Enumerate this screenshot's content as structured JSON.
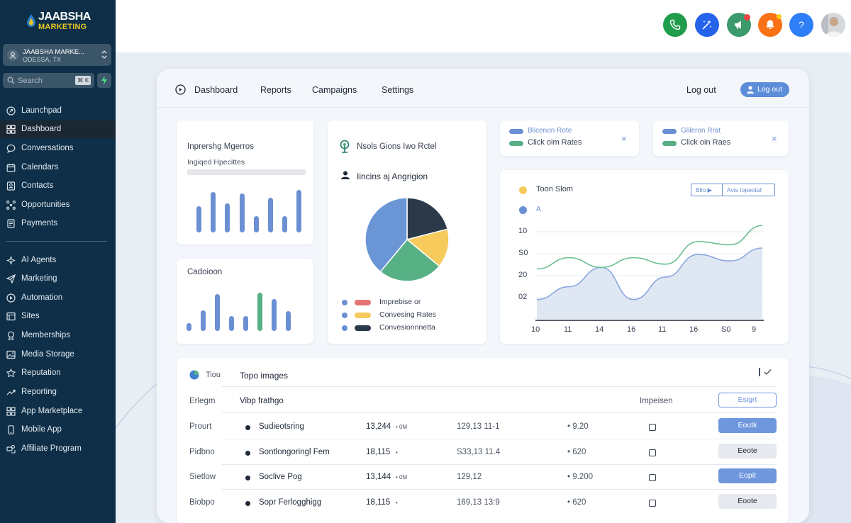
{
  "brand": {
    "name": "JAABSHA",
    "sub": "MARKETING",
    "accent": "#e7c421"
  },
  "account": {
    "name": "JAABSHA MARKE...",
    "location": "ODESSA, TX"
  },
  "search": {
    "placeholder": "Search",
    "shortcut": "⌘ K"
  },
  "sidebar": {
    "items": [
      {
        "label": "Launchpad",
        "icon": "rocket-icon"
      },
      {
        "label": "Dashboard",
        "icon": "grid-icon",
        "active": true
      },
      {
        "label": "Conversations",
        "icon": "chat-icon"
      },
      {
        "label": "Calendars",
        "icon": "calendar-icon"
      },
      {
        "label": "Contacts",
        "icon": "contacts-icon"
      },
      {
        "label": "Opportunities",
        "icon": "opportunities-icon"
      },
      {
        "label": "Payments",
        "icon": "payments-icon"
      },
      {
        "label": "AI Agents",
        "icon": "sparkle-icon"
      },
      {
        "label": "Marketing",
        "icon": "send-icon"
      },
      {
        "label": "Automation",
        "icon": "automation-icon"
      },
      {
        "label": "Sites",
        "icon": "sites-icon"
      },
      {
        "label": "Memberships",
        "icon": "memberships-icon"
      },
      {
        "label": "Media Storage",
        "icon": "image-icon"
      },
      {
        "label": "Reputation",
        "icon": "star-icon"
      },
      {
        "label": "Reporting",
        "icon": "trend-icon"
      },
      {
        "label": "App Marketplace",
        "icon": "apps-icon"
      },
      {
        "label": "Mobile App",
        "icon": "mobile-icon"
      },
      {
        "label": "Affiliate Program",
        "icon": "affiliate-icon"
      }
    ]
  },
  "topbar": {
    "buttons": [
      {
        "name": "phone-icon",
        "color": "#1f9d4d"
      },
      {
        "name": "magic-icon",
        "color": "#2563eb"
      },
      {
        "name": "megaphone-icon",
        "color": "#3b9a6b"
      },
      {
        "name": "bell-icon",
        "color": "#f97316"
      },
      {
        "name": "help-icon",
        "color": "#2d7ef7"
      }
    ]
  },
  "main_nav": {
    "items": [
      "Dashboard",
      "Reports",
      "Campaigns",
      "Settings"
    ],
    "logout_text": "Log out",
    "logout_button": "Log out"
  },
  "card1": {
    "title": "Inprershg Mgerros",
    "subtitle": "Ingiqed Hpecittes",
    "bars": [
      0.62,
      0.95,
      0.68,
      0.92,
      0.38,
      0.82,
      0.38,
      1.0
    ]
  },
  "card2": {
    "title": "Cadoioon",
    "bars": [
      0.2,
      0.54,
      0.96,
      0.38,
      0.38,
      1.0,
      0.84,
      0.52
    ],
    "highlight_index": 5
  },
  "card3": {
    "title": "Nsols Gions Iwo Rctel",
    "subtitle": "Iincins aj Angrigion",
    "pie": [
      {
        "value": 39,
        "color": "#6b96d6"
      },
      {
        "value": 25,
        "color": "#58b085"
      },
      {
        "value": 15,
        "color": "#f7ca5c"
      },
      {
        "value": 21,
        "color": "#2c3949"
      }
    ],
    "legend": [
      {
        "label": "Imprebise or",
        "color": "#e57373"
      },
      {
        "label": "Convesing Rates",
        "color": "#f7ca5c"
      },
      {
        "label": "Convesionnnetta",
        "color": "#2c3949"
      }
    ]
  },
  "mini1": {
    "line1": "Blicenon Rote",
    "line2": "Click oim Rates"
  },
  "mini2": {
    "line1": "Glileron Rrat",
    "line2": "Click oin Raes"
  },
  "linecard": {
    "legend1": "Toon Slom",
    "legend2": "A",
    "control_left": "Bllo ▶",
    "control_right": "Avis Iopeotaf",
    "yticks": [
      "10",
      "S0",
      "20",
      "02"
    ],
    "xticks": [
      "10",
      "11",
      "14",
      "16",
      "11",
      "16",
      "S0",
      "9"
    ]
  },
  "chart_data": {
    "type": "line",
    "x": [
      "10",
      "11",
      "14",
      "16",
      "11",
      "16",
      "S0",
      "9"
    ],
    "series": [
      {
        "values": [
          20.5,
          24,
          21,
          24,
          22,
          29,
          28,
          34
        ],
        "color": "#6bbf92"
      },
      {
        "values": [
          11,
          15,
          21,
          11,
          18,
          25,
          23,
          27
        ],
        "color": "#8aa7dc"
      }
    ]
  },
  "table": {
    "label": "Tiou",
    "title": "Topo images",
    "header": {
      "col1": "Erlegm",
      "col2": "Vibp frathgo",
      "col3": "Impeisen",
      "button": "Esigrt"
    },
    "rows": [
      {
        "col1": "Prourt",
        "name": "Sudieotsring",
        "num": "13,244",
        "unit": "• 0M",
        "code": "129,13 11-1",
        "val": "• 9.20",
        "button": "Eoutk",
        "style": "blue"
      },
      {
        "col1": "Pidbno",
        "name": "Sontlongoringl Fem",
        "num": "18,115",
        "unit": "•",
        "code": "S33,13 11.4",
        "val": "• 620",
        "button": "Eeote",
        "style": "gray"
      },
      {
        "col1": "Sietlow",
        "name": "Soclive Pog",
        "num": "13,144",
        "unit": "• 0M",
        "code": "129,12",
        "val": "• 9.200",
        "button": "Eopit",
        "style": "blue"
      },
      {
        "col1": "Biobpo",
        "name": "Sopr Ferlogghigg",
        "num": "18,115",
        "unit": "•",
        "code": "169,13 13:9",
        "val": "• 620",
        "button": "Eoote",
        "style": "gray"
      }
    ]
  }
}
